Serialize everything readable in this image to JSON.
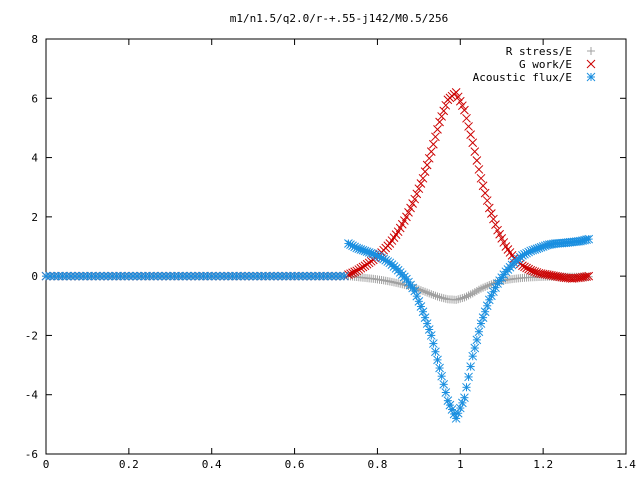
{
  "chart_data": {
    "type": "scatter",
    "title": "m1/n1.5/q2.0/r-+.55-j142/M0.5/256",
    "xlabel": "",
    "ylabel": "",
    "xlim": [
      0,
      1.4
    ],
    "ylim": [
      -6,
      8
    ],
    "x_ticks": [
      "0",
      "0.2",
      "0.4",
      "0.6",
      "0.8",
      "1",
      "1.2",
      "1.4"
    ],
    "y_ticks": [
      "-6",
      "-4",
      "-2",
      "0",
      "2",
      "4",
      "6",
      "8"
    ],
    "grid": false,
    "legend_position": "top-right",
    "series": [
      {
        "name": "R stress/E",
        "marker": "plus",
        "color": "#a0a0a0",
        "x": [
          0.73,
          0.75,
          0.77,
          0.79,
          0.81,
          0.83,
          0.85,
          0.87,
          0.89,
          0.91,
          0.93,
          0.95,
          0.97,
          0.99,
          1.01,
          1.03,
          1.05,
          1.07,
          1.09,
          1.11,
          1.13,
          1.15,
          1.17,
          1.19,
          1.21,
          1.23,
          1.25,
          1.27,
          1.29,
          1.31
        ],
        "y": [
          0.0,
          -0.03,
          -0.06,
          -0.09,
          -0.13,
          -0.18,
          -0.24,
          -0.31,
          -0.4,
          -0.5,
          -0.61,
          -0.71,
          -0.78,
          -0.8,
          -0.72,
          -0.58,
          -0.42,
          -0.3,
          -0.2,
          -0.13,
          -0.09,
          -0.06,
          -0.04,
          -0.03,
          -0.02,
          -0.02,
          -0.02,
          -0.02,
          -0.02,
          -0.02
        ]
      },
      {
        "name": "G work/E",
        "marker": "cross",
        "color": "#cc0000",
        "x": [
          0.73,
          0.75,
          0.77,
          0.79,
          0.81,
          0.83,
          0.85,
          0.87,
          0.89,
          0.91,
          0.93,
          0.95,
          0.97,
          0.99,
          1.01,
          1.03,
          1.05,
          1.07,
          1.09,
          1.11,
          1.13,
          1.15,
          1.17,
          1.19,
          1.21,
          1.23,
          1.25,
          1.27,
          1.29,
          1.31
        ],
        "y": [
          0.05,
          0.18,
          0.35,
          0.55,
          0.8,
          1.1,
          1.5,
          2.0,
          2.6,
          3.3,
          4.2,
          5.2,
          5.95,
          6.2,
          5.6,
          4.5,
          3.3,
          2.3,
          1.55,
          1.0,
          0.6,
          0.35,
          0.2,
          0.1,
          0.05,
          0.0,
          -0.05,
          -0.08,
          -0.05,
          0.0
        ]
      },
      {
        "name": "Acoustic flux/E",
        "marker": "star",
        "color": "#1a8fe0",
        "x": [
          0.73,
          0.75,
          0.77,
          0.79,
          0.81,
          0.83,
          0.85,
          0.87,
          0.89,
          0.91,
          0.93,
          0.95,
          0.97,
          0.99,
          1.01,
          1.03,
          1.05,
          1.07,
          1.09,
          1.11,
          1.13,
          1.15,
          1.17,
          1.19,
          1.21,
          1.23,
          1.25,
          1.27,
          1.29,
          1.31
        ],
        "y": [
          1.1,
          0.95,
          0.85,
          0.75,
          0.62,
          0.45,
          0.2,
          -0.1,
          -0.5,
          -1.2,
          -2.0,
          -3.1,
          -4.2,
          -4.8,
          -4.1,
          -2.7,
          -1.6,
          -0.8,
          -0.25,
          0.15,
          0.45,
          0.7,
          0.85,
          0.95,
          1.05,
          1.1,
          1.12,
          1.15,
          1.18,
          1.25
        ]
      }
    ]
  }
}
